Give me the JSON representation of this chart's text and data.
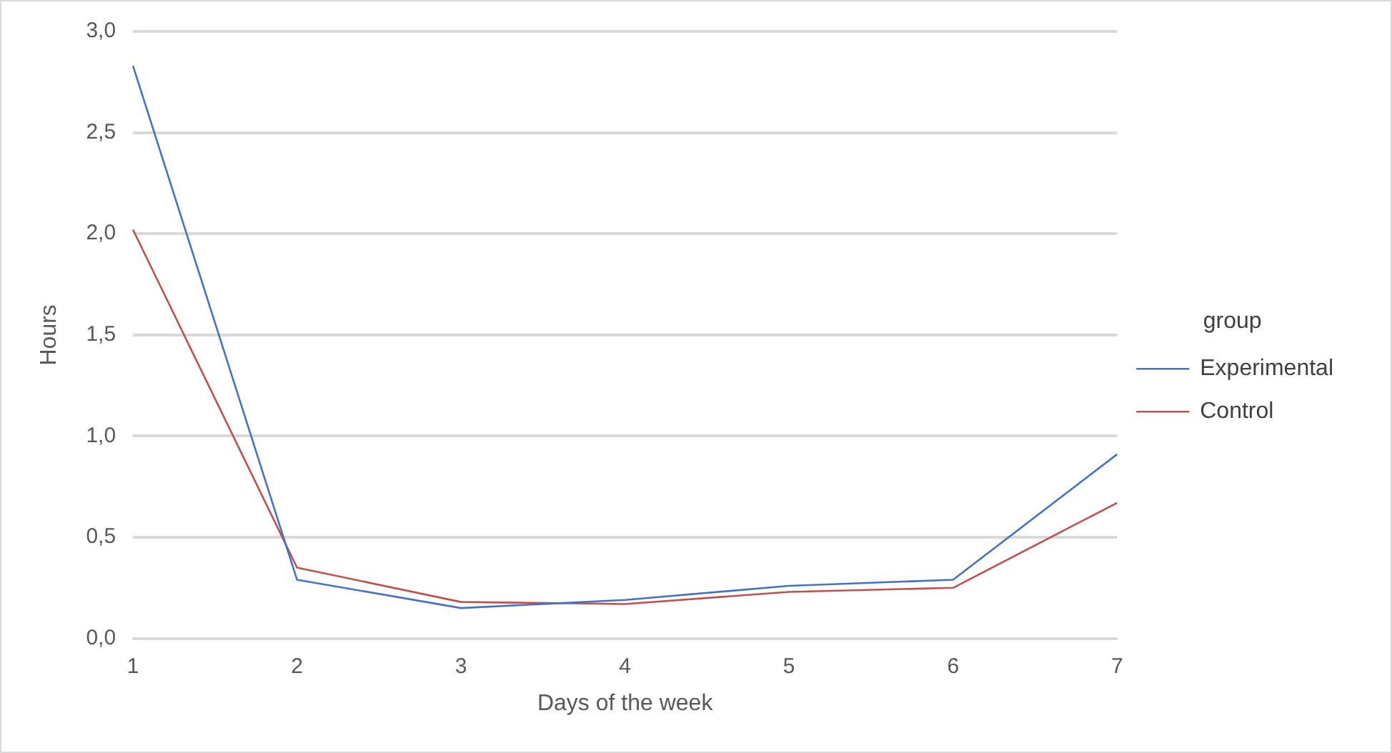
{
  "chart_data": {
    "type": "line",
    "xlabel": "Days of the week",
    "ylabel": "Hours",
    "legend_title": "group",
    "legend": "right",
    "grid": "y",
    "marker": "none",
    "line_style": "solid",
    "categories": [
      "1",
      "2",
      "3",
      "4",
      "5",
      "6",
      "7"
    ],
    "ylim": [
      0,
      3
    ],
    "yticks": [
      {
        "value": 0,
        "label": "0,0"
      },
      {
        "value": 0.5,
        "label": "0,5"
      },
      {
        "value": 1,
        "label": "1,0"
      },
      {
        "value": 1.5,
        "label": "1,5"
      },
      {
        "value": 2,
        "label": "2,0"
      },
      {
        "value": 2.5,
        "label": "2,5"
      },
      {
        "value": 3,
        "label": "3,0"
      }
    ],
    "series": [
      {
        "name": "Experimental",
        "color": "#4472c4",
        "values": [
          2.83,
          0.29,
          0.15,
          0.19,
          0.26,
          0.29,
          0.91
        ]
      },
      {
        "name": "Control",
        "color": "#c0504d",
        "values": [
          2.02,
          0.35,
          0.18,
          0.17,
          0.23,
          0.25,
          0.67
        ]
      }
    ]
  }
}
